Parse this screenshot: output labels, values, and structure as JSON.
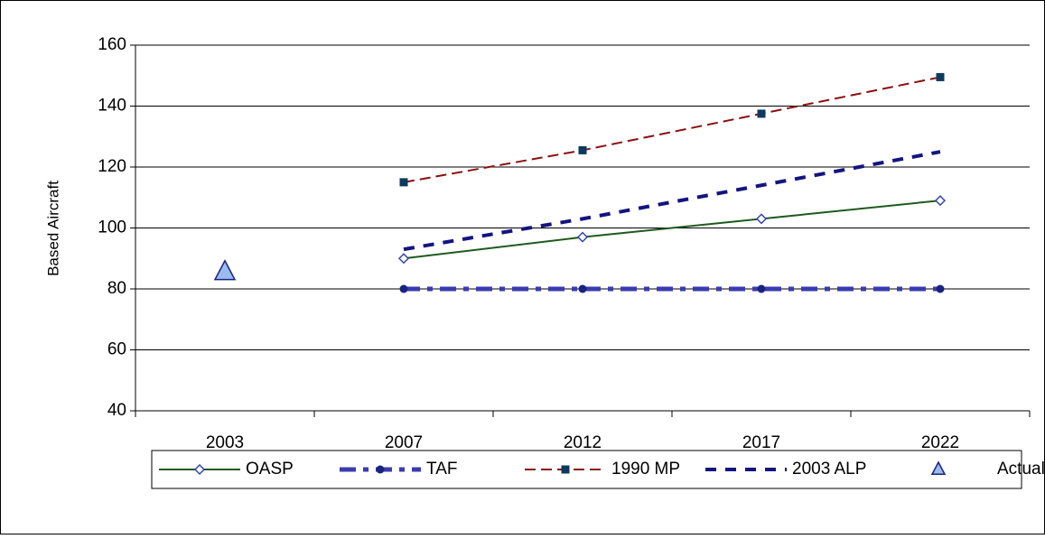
{
  "chart_data": {
    "type": "line",
    "y_label": "Based Aircraft",
    "categories": [
      "2003",
      "2007",
      "2012",
      "2017",
      "2022"
    ],
    "series": [
      {
        "name": "OASP",
        "color": "#1e5a1e",
        "dash": "solid",
        "width": 2,
        "marker": "diamond",
        "marker_color": "#3344aa",
        "values": [
          null,
          90,
          97,
          103,
          109
        ]
      },
      {
        "name": "TAF",
        "color": "#3b3bb0",
        "dash": "dashdot",
        "width": 5,
        "marker": "circle",
        "marker_color": "#1a237e",
        "values": [
          null,
          80,
          80,
          80,
          80
        ]
      },
      {
        "name": "1990 MP",
        "color": "#8b1010",
        "dash": "dash",
        "width": 2,
        "marker": "square",
        "marker_color": "#0b3a5e",
        "values": [
          null,
          115,
          125.5,
          137.5,
          149.5
        ]
      },
      {
        "name": "2003 ALP",
        "color": "#141480",
        "dash": "bigdash",
        "width": 4,
        "marker": "none",
        "marker_color": "#141480",
        "values": [
          null,
          93,
          103,
          114,
          125
        ]
      },
      {
        "name": "Actual",
        "color": "#1a237e",
        "dash": "none",
        "width": 0,
        "marker": "triangle",
        "marker_color": "#99bbee",
        "values": [
          86,
          null,
          null,
          null,
          null
        ]
      }
    ],
    "ylim": [
      40,
      160
    ],
    "yticks": [
      40,
      60,
      80,
      100,
      120,
      140,
      160
    ],
    "grid": true,
    "legend": "bottom"
  }
}
